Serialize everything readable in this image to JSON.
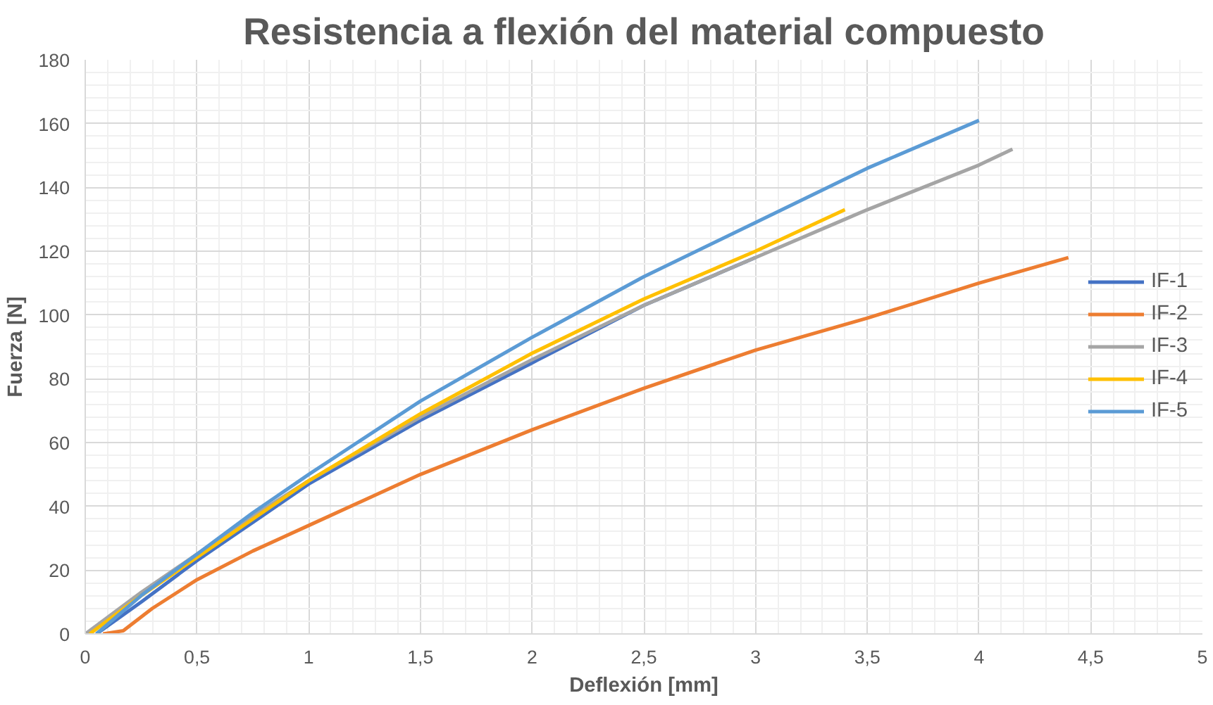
{
  "chart_data": {
    "type": "line",
    "title": "Resistencia a flexión del material compuesto",
    "xlabel": "Deflexión [mm]",
    "ylabel": "Fuerza [N]",
    "xlim": [
      0,
      5
    ],
    "ylim": [
      0,
      180
    ],
    "xticks": [
      0,
      {
        "value": 0.5,
        "label": "0,5"
      },
      1,
      {
        "value": 1.5,
        "label": "1,5"
      },
      2,
      {
        "value": 2.5,
        "label": "2,5"
      },
      3,
      {
        "value": 3.5,
        "label": "3,5"
      },
      4,
      {
        "value": 4.5,
        "label": "4,5"
      },
      5
    ],
    "yticks": [
      0,
      20,
      40,
      60,
      80,
      100,
      120,
      140,
      160,
      180
    ],
    "grid": true,
    "legend": "right",
    "marker": "none",
    "line_style": "solid",
    "series": [
      {
        "name": "IF-1",
        "color": "#4472c4",
        "x": [
          0.05,
          0.25,
          0.5,
          0.75,
          1,
          1.5,
          2,
          2.5,
          3
        ],
        "values": [
          0,
          10,
          23,
          35,
          47,
          67,
          85,
          103,
          118
        ]
      },
      {
        "name": "IF-2",
        "color": "#ed7d31",
        "x": [
          0.08,
          0.17,
          0.3,
          0.5,
          0.75,
          1,
          1.5,
          2,
          2.5,
          3,
          3.5,
          4,
          4.4
        ],
        "values": [
          0,
          1,
          8,
          17,
          26,
          34,
          50,
          64,
          77,
          89,
          99,
          110,
          118
        ]
      },
      {
        "name": "IF-3",
        "color": "#a5a5a5",
        "x": [
          0,
          0.25,
          0.5,
          0.75,
          1,
          1.5,
          2,
          2.5,
          3,
          3.4,
          3.5,
          4,
          4.15
        ],
        "values": [
          0,
          13,
          25,
          37,
          48,
          68,
          86,
          103,
          118,
          130,
          133,
          147,
          152
        ]
      },
      {
        "name": "IF-4",
        "color": "#ffc000",
        "x": [
          0.02,
          0.25,
          0.5,
          0.75,
          1,
          1.5,
          2,
          2.5,
          3,
          3.4
        ],
        "values": [
          0,
          12,
          24,
          36,
          48,
          69,
          88,
          105,
          120,
          133
        ]
      },
      {
        "name": "IF-5",
        "color": "#5b9bd5",
        "x": [
          0.05,
          0.25,
          0.5,
          0.75,
          1,
          1.5,
          2,
          2.5,
          3,
          3.5,
          4
        ],
        "values": [
          0,
          12,
          25,
          38,
          50,
          73,
          93,
          112,
          129,
          146,
          161
        ]
      }
    ]
  }
}
